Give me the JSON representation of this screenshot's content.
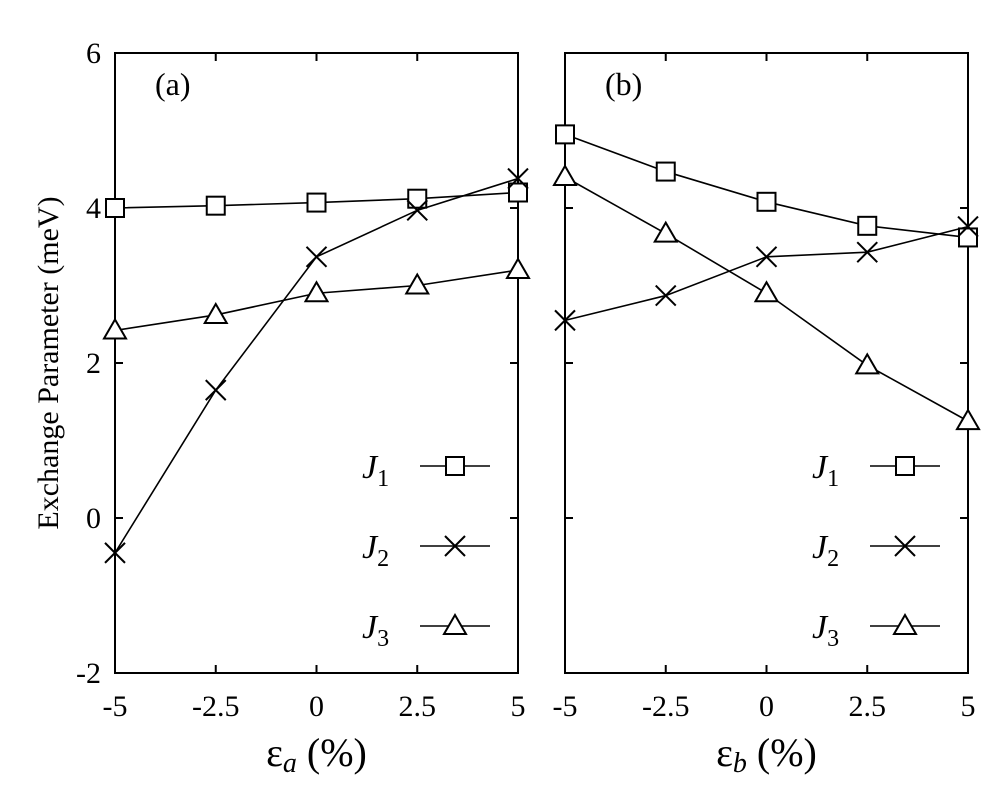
{
  "chart_data": [
    {
      "type": "line",
      "panel_label": "(a)",
      "xlabel_symbol": "ε",
      "xlabel_subscript": "a",
      "xlabel_unit": " (%)",
      "ylabel": "Exchange Parameter (meV)",
      "x": [
        -5,
        -2.5,
        0,
        2.5,
        5
      ],
      "x_tick_labels": [
        "-5",
        "-2.5",
        "0",
        "2.5",
        "5"
      ],
      "y_ticks": [
        -2,
        0,
        2,
        4,
        6
      ],
      "y_tick_labels": [
        "-2",
        "0",
        "2",
        "4",
        "6"
      ],
      "xlim": [
        -5,
        5
      ],
      "ylim": [
        -2,
        6
      ],
      "grid": false,
      "legend_position": "bottom-right",
      "series": [
        {
          "name": "J",
          "subscript": "1",
          "marker": "square",
          "values": [
            4.0,
            4.03,
            4.07,
            4.12,
            4.2
          ]
        },
        {
          "name": "J",
          "subscript": "2",
          "marker": "cross",
          "values": [
            -0.45,
            1.65,
            3.37,
            3.97,
            4.38
          ]
        },
        {
          "name": "J",
          "subscript": "3",
          "marker": "triangle",
          "values": [
            2.42,
            2.62,
            2.9,
            3.0,
            3.2
          ]
        }
      ]
    },
    {
      "type": "line",
      "panel_label": "(b)",
      "xlabel_symbol": "ε",
      "xlabel_subscript": "b",
      "xlabel_unit": " (%)",
      "ylabel": "",
      "x": [
        -5,
        -2.5,
        0,
        2.5,
        5
      ],
      "x_tick_labels": [
        "-5",
        "-2.5",
        "0",
        "2.5",
        "5"
      ],
      "y_ticks": [
        -2,
        0,
        2,
        4,
        6
      ],
      "y_tick_labels": [],
      "xlim": [
        -5,
        5
      ],
      "ylim": [
        -2,
        6
      ],
      "grid": false,
      "legend_position": "bottom-right",
      "series": [
        {
          "name": "J",
          "subscript": "1",
          "marker": "square",
          "values": [
            4.95,
            4.47,
            4.08,
            3.77,
            3.62
          ]
        },
        {
          "name": "J",
          "subscript": "2",
          "marker": "cross",
          "values": [
            2.55,
            2.87,
            3.37,
            3.43,
            3.76
          ]
        },
        {
          "name": "J",
          "subscript": "3",
          "marker": "triangle",
          "values": [
            4.4,
            3.67,
            2.9,
            1.97,
            1.25
          ]
        }
      ]
    }
  ]
}
